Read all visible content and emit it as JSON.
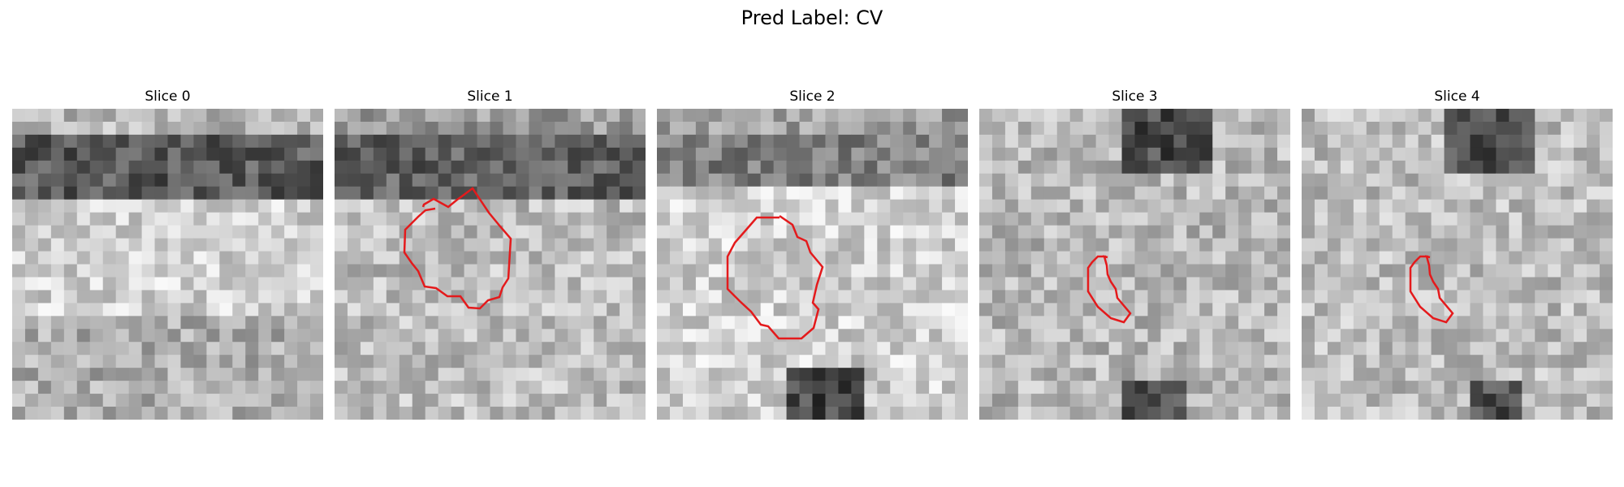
{
  "figure": {
    "title": "Pred Label: CV"
  },
  "contour_color": "#e41a1c",
  "panels": [
    {
      "title": "Slice 0",
      "has_contour": false,
      "contour_shape": "none"
    },
    {
      "title": "Slice 1",
      "has_contour": true,
      "contour_shape": "large-blob"
    },
    {
      "title": "Slice 2",
      "has_contour": true,
      "contour_shape": "octagon"
    },
    {
      "title": "Slice 3",
      "has_contour": true,
      "contour_shape": "small-wedge"
    },
    {
      "title": "Slice 4",
      "has_contour": true,
      "contour_shape": "small-wedge"
    }
  ]
}
